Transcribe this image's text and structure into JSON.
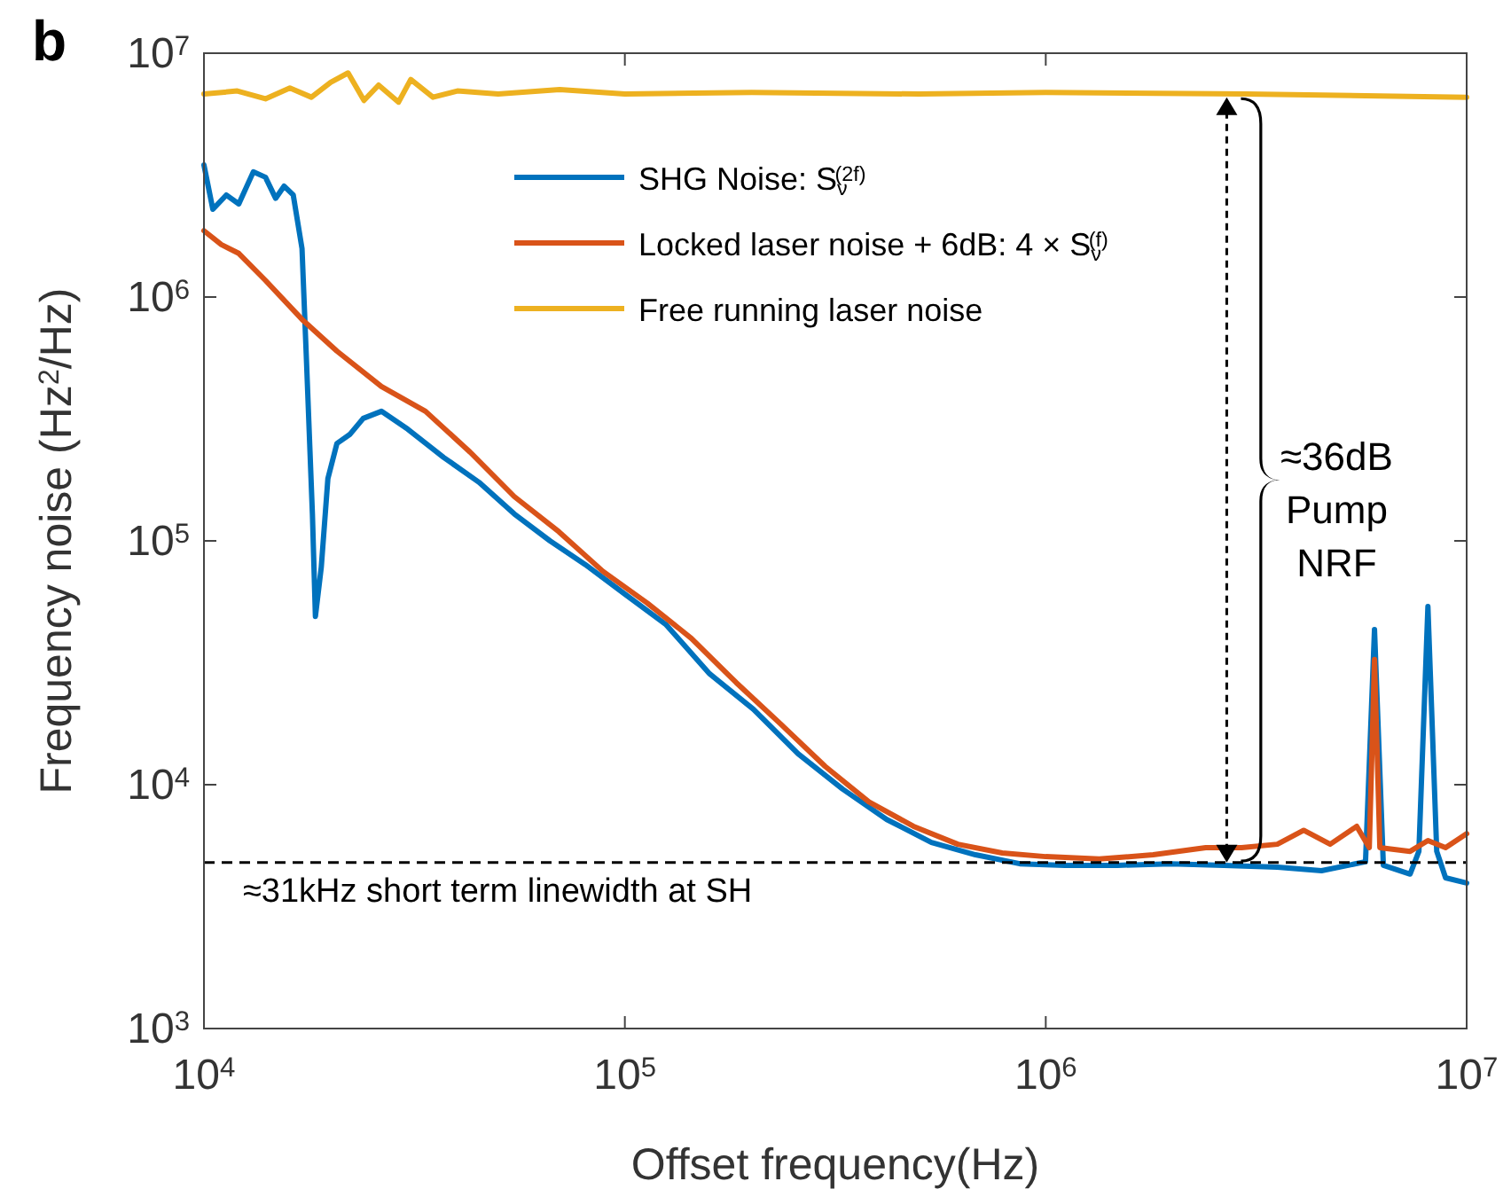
{
  "chart_data": {
    "type": "line",
    "xlabel": "Offset frequency(Hz)",
    "ylabel": "Frequency noise (Hz$^{2}$/Hz)",
    "log": "xy",
    "xlim": [
      10000,
      10000000
    ],
    "ylim": [
      1000,
      10000000
    ],
    "xticks": [
      {
        "value": 10000,
        "label": "10$^{4}$"
      },
      {
        "value": 100000,
        "label": "10$^{5}$"
      },
      {
        "value": 1000000,
        "label": "10$^{6}$"
      },
      {
        "value": 10000000,
        "label": "10$^{7}$"
      }
    ],
    "yticks": [
      {
        "value": 1000,
        "label": "10$^{3}$"
      },
      {
        "value": 10000,
        "label": "10$^{4}$"
      },
      {
        "value": 100000,
        "label": "10$^{5}$"
      },
      {
        "value": 1000000,
        "label": "10$^{6}$"
      },
      {
        "value": 10000000,
        "label": "10$^{7}$"
      }
    ],
    "grid": false,
    "legend": "top",
    "line_style": "solid",
    "series": [
      {
        "name": "SHG Noise: S$_{ν}$$^{(2f)}$",
        "color": "#0072bd",
        "x": [
          10000,
          10500,
          11300,
          12100,
          13100,
          14000,
          14800,
          15500,
          16300,
          17100,
          17500,
          18100,
          18400,
          19000,
          19700,
          20700,
          22200,
          23900,
          26400,
          30500,
          37100,
          45000,
          54600,
          66400,
          80500,
          100000,
          125000,
          159000,
          202000,
          258000,
          329000,
          419000,
          535000,
          681000,
          868000,
          1110000,
          1480000,
          1980000,
          2650000,
          3550000,
          4520000,
          5750000,
          6040000,
          6340000,
          7340000,
          7700000,
          8090000,
          8490000,
          8910000,
          10000000
        ],
        "values": [
          3480000,
          2290000,
          2620000,
          2410000,
          3260000,
          3100000,
          2540000,
          2850000,
          2620000,
          1580000,
          580000,
          129000,
          49000,
          78000,
          180000,
          251000,
          273000,
          318000,
          340000,
          287000,
          220000,
          174000,
          129000,
          100000,
          80000,
          60500,
          45500,
          28500,
          20400,
          13400,
          9600,
          7200,
          5800,
          5160,
          4740,
          4670,
          4670,
          4740,
          4670,
          4590,
          4440,
          4830,
          43300,
          4670,
          4300,
          5330,
          53800,
          5330,
          4150,
          3950
        ]
      },
      {
        "name": "Locked laser noise + 6dB: 4 × S$_{ν}$$^{(f)}$",
        "color": "#d95319",
        "x": [
          10000,
          11000,
          12100,
          14000,
          17100,
          20700,
          26400,
          33600,
          42900,
          54600,
          69700,
          88700,
          113000,
          144000,
          184000,
          234000,
          299000,
          380000,
          485000,
          618000,
          788000,
          1000000,
          1340000,
          1800000,
          2400000,
          2920000,
          3550000,
          4100000,
          4740000,
          5480000,
          5870000,
          6040000,
          6220000,
          7340000,
          8090000,
          8910000,
          10000000
        ],
        "values": [
          1870000,
          1640000,
          1510000,
          1170000,
          810000,
          600000,
          430000,
          340000,
          231000,
          152000,
          109000,
          75000,
          55600,
          39800,
          26200,
          17800,
          11900,
          8500,
          6750,
          5700,
          5250,
          5070,
          4960,
          5160,
          5520,
          5520,
          5700,
          6500,
          5700,
          6750,
          5520,
          32600,
          5520,
          5330,
          5900,
          5520,
          6300
        ]
      },
      {
        "name": "Free running laser noise",
        "color": "#edb120",
        "x": [
          10000,
          12000,
          14000,
          16000,
          18000,
          20000,
          22000,
          24000,
          26000,
          29000,
          31000,
          35000,
          40000,
          50000,
          70000,
          100000,
          200000,
          500000,
          1000000,
          3000000,
          10000000
        ],
        "values": [
          6800000,
          7000000,
          6500000,
          7200000,
          6600000,
          7600000,
          8300000,
          6400000,
          7400000,
          6300000,
          7800000,
          6600000,
          7000000,
          6800000,
          7100000,
          6800000,
          6900000,
          6800000,
          6900000,
          6800000,
          6600000
        ]
      }
    ],
    "ref_lines": [
      {
        "axis": "y",
        "value": 4800,
        "label": "≈31kHz short term linewidth at SH",
        "color": "#000000",
        "line_style": "dashed"
      }
    ],
    "annotations": [
      "b",
      "≈36dB Pump NRF"
    ]
  }
}
